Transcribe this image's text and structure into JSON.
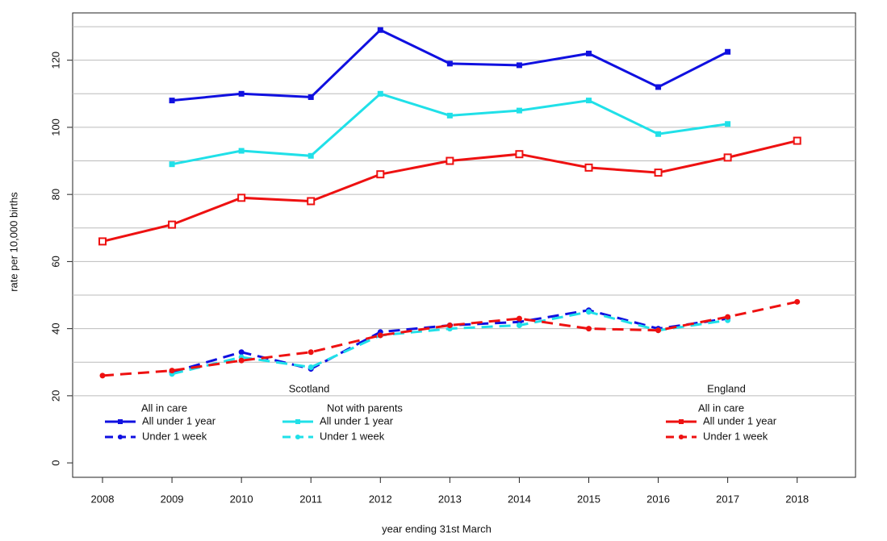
{
  "chart_data": {
    "type": "line",
    "x_label": "year ending 31st March",
    "y_label": "rate per 10,000 births",
    "x": [
      2008,
      2009,
      2010,
      2011,
      2012,
      2013,
      2014,
      2015,
      2016,
      2017,
      2018
    ],
    "xlim": [
      2007.57,
      2018.84
    ],
    "xticks": [
      2008,
      2009,
      2010,
      2011,
      2012,
      2013,
      2014,
      2015,
      2016,
      2017,
      2018
    ],
    "ylim": [
      -4.3,
      134.1
    ],
    "yticks": [
      0,
      20,
      40,
      60,
      80,
      100,
      120
    ],
    "ygrid": [
      20,
      30,
      40,
      50,
      60,
      70,
      80,
      90,
      100,
      110,
      120,
      130
    ],
    "groups": [
      {
        "heading": "Scotland",
        "subgroups": [
          {
            "title": "All in care",
            "series": [
              {
                "name": "All under 1 year",
                "color": "#1010e0",
                "dash": false,
                "marker": "square",
                "values": [
                  null,
                  108,
                  110,
                  109,
                  129,
                  119,
                  118.5,
                  122,
                  112,
                  122.5,
                  null
                ]
              },
              {
                "name": "Under 1 week",
                "color": "#1010e0",
                "dash": true,
                "marker": "circle",
                "values": [
                  null,
                  27,
                  33,
                  28,
                  39,
                  41,
                  42,
                  45.5,
                  40,
                  43,
                  null
                ]
              }
            ]
          },
          {
            "title": "Not with parents",
            "series": [
              {
                "name": "All under 1 year",
                "color": "#20e0e8",
                "dash": false,
                "marker": "square",
                "values": [
                  null,
                  89,
                  93,
                  91.5,
                  110,
                  103.5,
                  105,
                  108,
                  98,
                  101,
                  null
                ]
              },
              {
                "name": "Under 1 week",
                "color": "#20e0e8",
                "dash": true,
                "marker": "circle",
                "values": [
                  null,
                  26.5,
                  31.5,
                  28.5,
                  38,
                  40,
                  41,
                  45,
                  39.5,
                  42.5,
                  null
                ]
              }
            ]
          }
        ]
      },
      {
        "heading": "England",
        "subgroups": [
          {
            "title": "All in care",
            "series": [
              {
                "name": "All under 1 year",
                "color": "#ee1111",
                "dash": false,
                "marker": "open-square",
                "values": [
                  66,
                  71,
                  79,
                  78,
                  86,
                  90,
                  92,
                  88,
                  86.5,
                  91,
                  96
                ]
              },
              {
                "name": "Under 1 week",
                "color": "#ee1111",
                "dash": true,
                "marker": "circle",
                "values": [
                  26,
                  27.5,
                  30.5,
                  33,
                  38,
                  41,
                  43,
                  40,
                  39.5,
                  43.5,
                  48
                ]
              }
            ]
          }
        ]
      }
    ]
  }
}
